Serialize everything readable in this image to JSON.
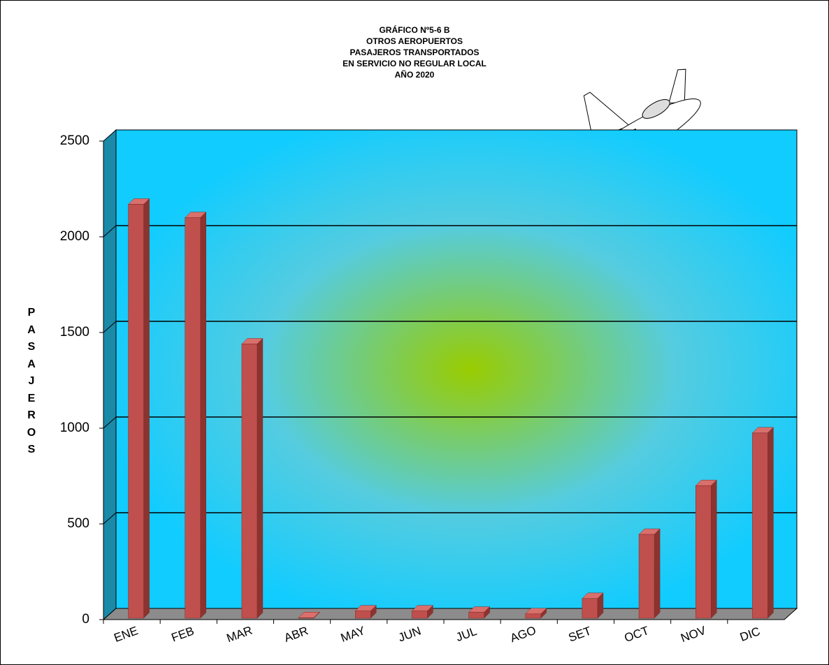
{
  "chart_data": {
    "type": "bar",
    "title": [
      "GRÁFICO Nº5-6 B",
      "OTROS AEROPUERTOS",
      "PASAJEROS TRANSPORTADOS",
      "EN SERVICIO NO REGULAR LOCAL",
      "AÑO 2020"
    ],
    "y_label": "PASAJEROS",
    "categories": [
      "ENE",
      "FEB",
      "MAR",
      "ABR",
      "MAY",
      "JUN",
      "JUL",
      "AGO",
      "SET",
      "OCT",
      "NOV",
      "DIC"
    ],
    "values": [
      2170,
      2100,
      1440,
      10,
      45,
      45,
      38,
      30,
      110,
      445,
      700,
      975
    ],
    "color": "#c0504d",
    "ylim": [
      0,
      2500
    ],
    "yticks": [
      0,
      500,
      1000,
      1500,
      2000,
      2500
    ],
    "grid": true
  }
}
